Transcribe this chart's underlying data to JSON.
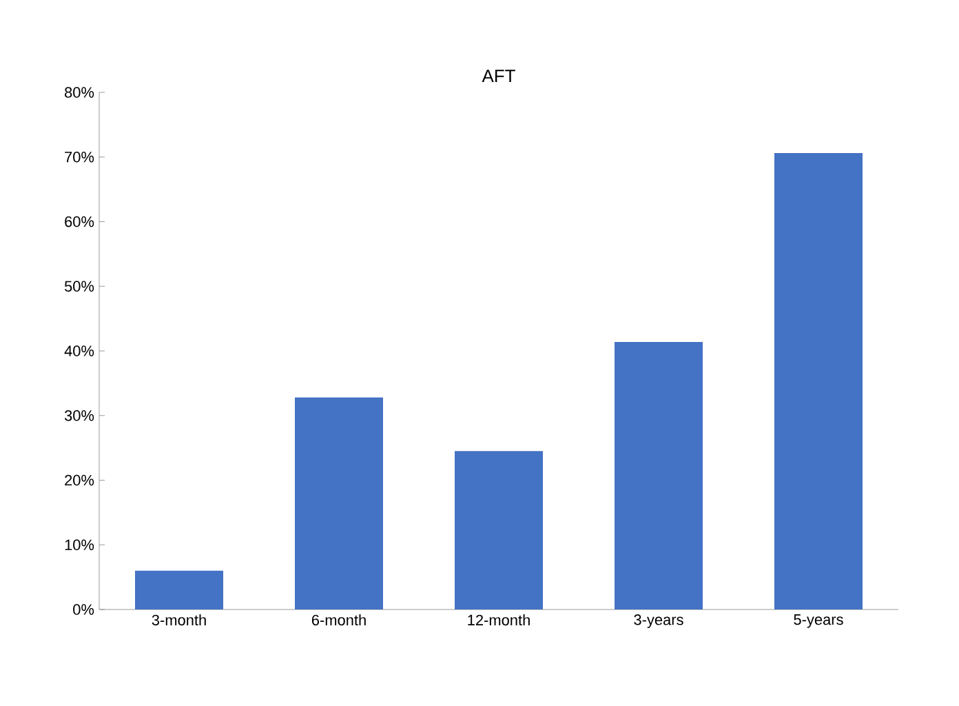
{
  "chart_data": {
    "type": "bar",
    "title": "AFT",
    "categories": [
      "3-month",
      "6-month",
      "12-month",
      "3-years",
      "5-years"
    ],
    "values": [
      6.0,
      32.8,
      24.5,
      41.4,
      70.6
    ],
    "color": "#4472c4",
    "ylim": [
      0,
      80
    ],
    "yticks": [
      {
        "value": 0,
        "label": "0%"
      },
      {
        "value": 10,
        "label": "10%"
      },
      {
        "value": 20,
        "label": "20%"
      },
      {
        "value": 30,
        "label": "30%"
      },
      {
        "value": 40,
        "label": "40%"
      },
      {
        "value": 50,
        "label": "50%"
      },
      {
        "value": 60,
        "label": "60%"
      },
      {
        "value": 70,
        "label": "70%"
      },
      {
        "value": 80,
        "label": "80%"
      }
    ],
    "orientation": "vertical"
  }
}
